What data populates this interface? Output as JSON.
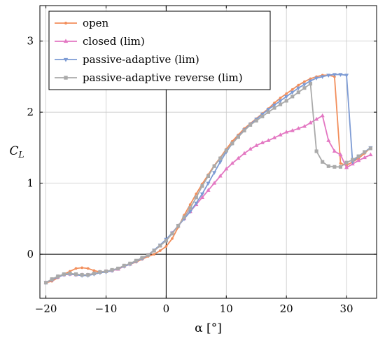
{
  "chart_data": {
    "type": "line",
    "xlabel": "α [°]",
    "ylabel": "C_L",
    "xlim": [
      -21,
      35
    ],
    "ylim": [
      -0.62,
      3.5
    ],
    "xticks": [
      -20,
      -10,
      0,
      10,
      20,
      30
    ],
    "yticks": [
      0,
      1,
      2,
      3
    ],
    "grid": true,
    "legend_position": "top-left",
    "series": [
      {
        "name": "open",
        "color": "#F28E5B",
        "marker": "dot",
        "x": [
          -20,
          -19,
          -18,
          -17,
          -16,
          -15,
          -14,
          -13,
          -12,
          -11,
          -10,
          -9,
          -8,
          -7,
          -6,
          -5,
          -4,
          -3,
          -2,
          -1,
          0,
          1,
          2,
          3,
          4,
          5,
          6,
          7,
          8,
          9,
          10,
          11,
          12,
          13,
          14,
          15,
          16,
          17,
          18,
          19,
          20,
          21,
          22,
          23,
          24,
          25,
          26,
          27,
          28,
          29,
          30,
          31,
          32,
          33,
          34
        ],
        "y": [
          -0.4,
          -0.38,
          -0.33,
          -0.28,
          -0.24,
          -0.2,
          -0.19,
          -0.2,
          -0.23,
          -0.25,
          -0.25,
          -0.23,
          -0.21,
          -0.17,
          -0.14,
          -0.11,
          -0.07,
          -0.03,
          0.0,
          0.05,
          0.11,
          0.22,
          0.38,
          0.55,
          0.7,
          0.85,
          0.99,
          1.12,
          1.25,
          1.36,
          1.48,
          1.59,
          1.68,
          1.77,
          1.84,
          1.91,
          1.98,
          2.05,
          2.13,
          2.2,
          2.26,
          2.32,
          2.38,
          2.43,
          2.47,
          2.5,
          2.52,
          2.52,
          2.5,
          1.28,
          1.25,
          1.3,
          1.35,
          1.42,
          1.5
        ]
      },
      {
        "name": "closed (lim)",
        "color": "#E377C2",
        "marker": "triangle-up",
        "x": [
          -20,
          -19,
          -18,
          -17,
          -16,
          -15,
          -14,
          -13,
          -12,
          -11,
          -10,
          -9,
          -8,
          -7,
          -6,
          -5,
          -4,
          -3,
          -2,
          -1,
          0,
          1,
          2,
          3,
          4,
          5,
          6,
          7,
          8,
          9,
          10,
          11,
          12,
          13,
          14,
          15,
          16,
          17,
          18,
          19,
          20,
          21,
          22,
          23,
          24,
          25,
          26,
          27,
          28,
          29,
          30,
          31,
          32,
          33,
          34
        ],
        "y": [
          -0.4,
          -0.36,
          -0.32,
          -0.29,
          -0.28,
          -0.29,
          -0.29,
          -0.29,
          -0.27,
          -0.25,
          -0.24,
          -0.23,
          -0.21,
          -0.17,
          -0.14,
          -0.1,
          -0.06,
          -0.01,
          0.05,
          0.12,
          0.2,
          0.3,
          0.4,
          0.5,
          0.6,
          0.7,
          0.8,
          0.9,
          1.0,
          1.1,
          1.2,
          1.28,
          1.35,
          1.42,
          1.48,
          1.53,
          1.57,
          1.6,
          1.64,
          1.68,
          1.72,
          1.74,
          1.77,
          1.8,
          1.85,
          1.9,
          1.95,
          1.6,
          1.45,
          1.4,
          1.22,
          1.27,
          1.32,
          1.36,
          1.4
        ]
      },
      {
        "name": "passive-adaptive (lim)",
        "color": "#7D9BD4",
        "marker": "triangle-down",
        "x": [
          -20,
          -19,
          -18,
          -17,
          -16,
          -15,
          -14,
          -13,
          -12,
          -11,
          -10,
          -9,
          -8,
          -7,
          -6,
          -5,
          -4,
          -3,
          -2,
          -1,
          0,
          1,
          2,
          3,
          4,
          5,
          6,
          7,
          8,
          9,
          10,
          11,
          12,
          13,
          14,
          15,
          16,
          17,
          18,
          19,
          20,
          21,
          22,
          23,
          24,
          25,
          26,
          27,
          28,
          29,
          30,
          31,
          32,
          33,
          34
        ],
        "y": [
          -0.4,
          -0.36,
          -0.32,
          -0.29,
          -0.28,
          -0.29,
          -0.3,
          -0.3,
          -0.28,
          -0.26,
          -0.25,
          -0.23,
          -0.2,
          -0.17,
          -0.14,
          -0.1,
          -0.06,
          -0.01,
          0.06,
          0.13,
          0.21,
          0.3,
          0.4,
          0.5,
          0.6,
          0.72,
          0.85,
          1.0,
          1.15,
          1.3,
          1.44,
          1.56,
          1.66,
          1.75,
          1.83,
          1.9,
          1.97,
          2.04,
          2.1,
          2.16,
          2.22,
          2.28,
          2.34,
          2.39,
          2.44,
          2.48,
          2.5,
          2.52,
          2.53,
          2.53,
          2.52,
          1.3,
          1.38,
          1.44,
          1.5
        ]
      },
      {
        "name": "passive-adaptive reverse (lim)",
        "color": "#AAAAAA",
        "marker": "square",
        "x": [
          -20,
          -19,
          -18,
          -17,
          -16,
          -15,
          -14,
          -13,
          -12,
          -11,
          -10,
          -9,
          -8,
          -7,
          -6,
          -5,
          -4,
          -3,
          -2,
          -1,
          0,
          1,
          2,
          3,
          4,
          5,
          6,
          7,
          8,
          9,
          10,
          11,
          12,
          13,
          14,
          15,
          16,
          17,
          18,
          19,
          20,
          21,
          22,
          23,
          24,
          25,
          26,
          27,
          28,
          29,
          30,
          31,
          32,
          33,
          34
        ],
        "y": [
          -0.4,
          -0.35,
          -0.31,
          -0.28,
          -0.27,
          -0.28,
          -0.29,
          -0.29,
          -0.27,
          -0.25,
          -0.24,
          -0.22,
          -0.2,
          -0.16,
          -0.13,
          -0.09,
          -0.05,
          -0.01,
          0.05,
          0.12,
          0.19,
          0.29,
          0.4,
          0.52,
          0.65,
          0.8,
          0.96,
          1.1,
          1.24,
          1.35,
          1.46,
          1.56,
          1.65,
          1.74,
          1.82,
          1.88,
          1.94,
          2.0,
          2.06,
          2.11,
          2.16,
          2.22,
          2.28,
          2.34,
          2.4,
          1.45,
          1.3,
          1.24,
          1.23,
          1.23,
          1.29,
          1.33,
          1.38,
          1.44,
          1.49
        ]
      }
    ]
  }
}
